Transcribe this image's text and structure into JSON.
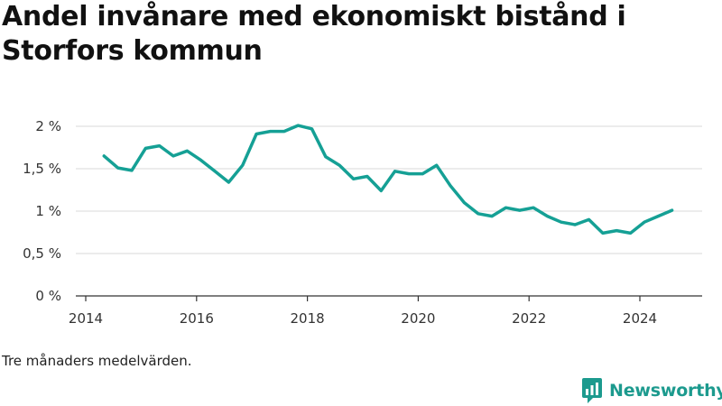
{
  "title": "Andel invånare med ekonomiskt bistånd i Storfors kommun",
  "footnote": "Tre månaders medelvärden.",
  "brand": {
    "name": "Newsworthy",
    "icon": "newsworthy-logo-icon",
    "color": "#1c9a8e"
  },
  "colors": {
    "line": "#15a095",
    "grid": "#d9d9d9",
    "axis": "#333333"
  },
  "chart_data": {
    "type": "line",
    "title": "Andel invånare med ekonomiskt bistånd i Storfors kommun",
    "xlabel": "",
    "ylabel": "",
    "xlim": [
      2014,
      2025.2
    ],
    "ylim": [
      0,
      2
    ],
    "x_ticks": [
      2014,
      2016,
      2018,
      2020,
      2022,
      2024
    ],
    "x_tick_labels": [
      "2014",
      "2016",
      "2018",
      "2020",
      "2022",
      "2024"
    ],
    "y_ticks": [
      0,
      0.5,
      1,
      1.5,
      2
    ],
    "y_tick_labels": [
      "0 %",
      "0,5 %",
      "1 %",
      "1,5 %",
      "2 %"
    ],
    "grid": true,
    "series": [
      {
        "x": [
          2014.33,
          2014.58,
          2014.83,
          2015.08,
          2015.33,
          2015.58,
          2015.83,
          2016.08,
          2016.33,
          2016.58,
          2016.83,
          2017.08,
          2017.33,
          2017.58,
          2017.83,
          2018.08,
          2018.33,
          2018.58,
          2018.83,
          2019.08,
          2019.33,
          2019.58,
          2019.83,
          2020.08,
          2020.33,
          2020.58,
          2020.83,
          2021.08,
          2021.33,
          2021.58,
          2021.83,
          2022.08,
          2022.33,
          2022.58,
          2022.83,
          2023.08,
          2023.33,
          2023.58,
          2023.83,
          2024.08,
          2024.33,
          2024.58
        ],
        "y": [
          1.65,
          1.51,
          1.48,
          1.74,
          1.77,
          1.65,
          1.71,
          1.6,
          1.47,
          1.34,
          1.54,
          1.91,
          1.94,
          1.94,
          2.01,
          1.97,
          1.64,
          1.54,
          1.38,
          1.41,
          1.24,
          1.47,
          1.44,
          1.44,
          1.54,
          1.3,
          1.1,
          0.97,
          0.94,
          1.04,
          1.01,
          1.04,
          0.94,
          0.87,
          0.84,
          0.9,
          0.74,
          0.77,
          0.74,
          0.87,
          0.94,
          1.01
        ]
      }
    ]
  }
}
